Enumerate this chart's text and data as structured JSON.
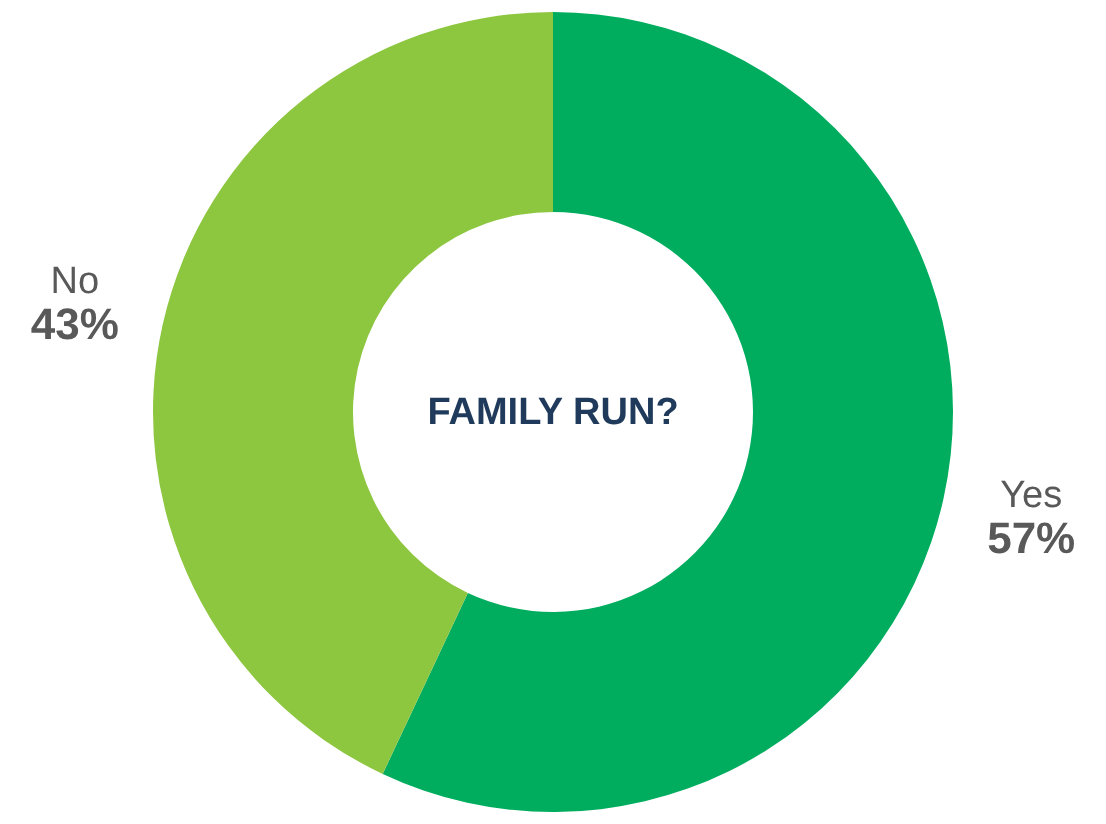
{
  "chart_data": {
    "type": "donut",
    "title": "FAMILY RUN?",
    "categories": [
      "Yes",
      "No"
    ],
    "values": [
      57,
      43
    ],
    "colors": [
      "#00ad5f",
      "#8dc63f"
    ],
    "value_labels": [
      "57%",
      "43%"
    ]
  }
}
